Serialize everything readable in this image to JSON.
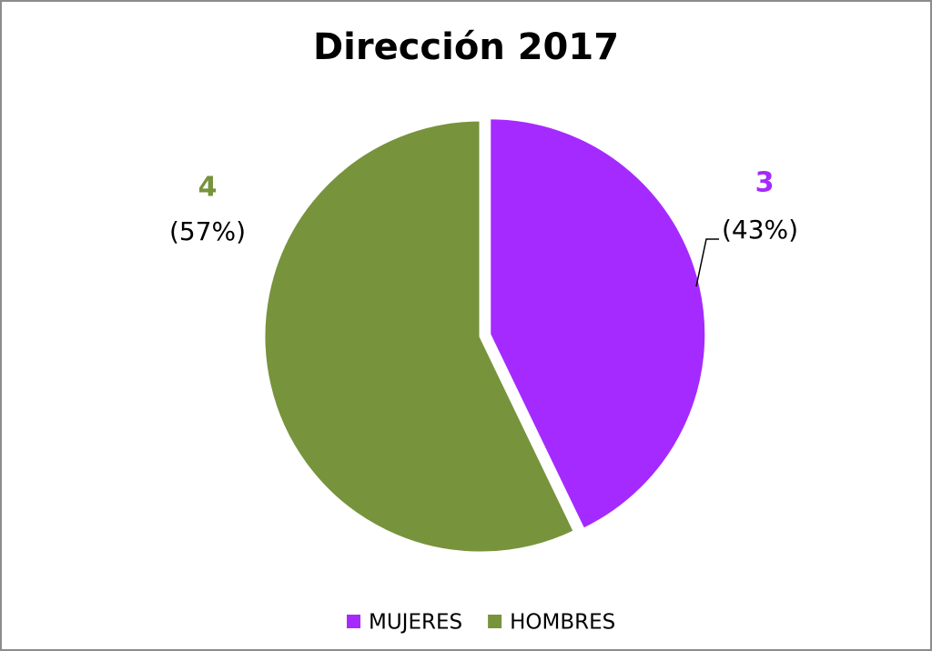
{
  "chart_data": {
    "type": "pie",
    "title": "Dirección 2017",
    "categories": [
      "MUJERES",
      "HOMBRES"
    ],
    "values": [
      3,
      4
    ],
    "percent_labels": [
      "(43%)",
      "(57%)"
    ],
    "colors": [
      "#a52aff",
      "#77933c"
    ],
    "legend": "bottom"
  }
}
